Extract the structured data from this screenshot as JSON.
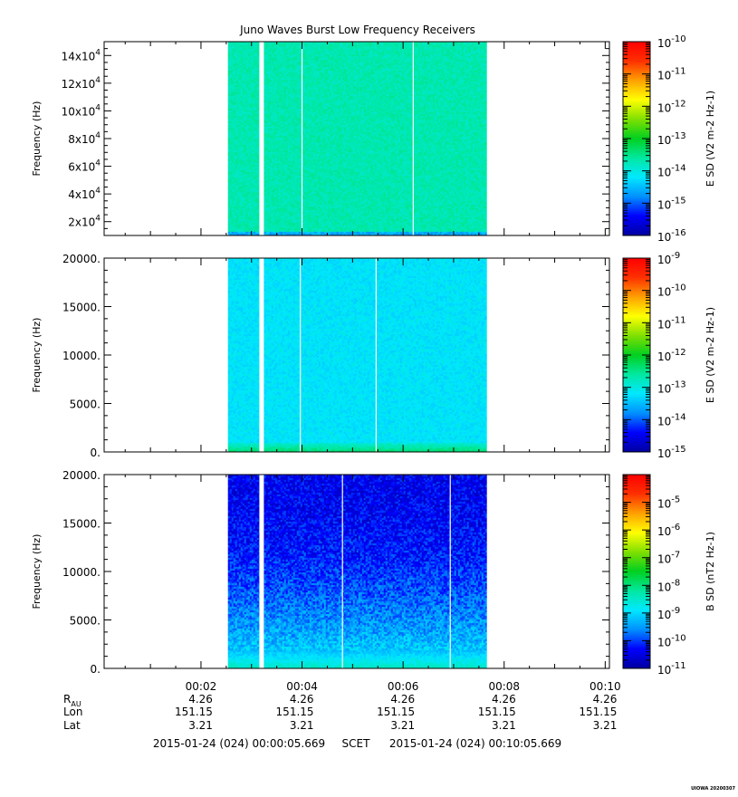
{
  "title": "Juno Waves Burst Low Frequency Receivers",
  "colors": {
    "spectrum": [
      "#0000a0",
      "#0000ff",
      "#0090ff",
      "#00e8ff",
      "#00e8a0",
      "#00d020",
      "#80e000",
      "#ffff00",
      "#ffa000",
      "#ff3000",
      "#ff0000"
    ],
    "frame": "#000000",
    "background": "#ffffff"
  },
  "footer": {
    "left": "2015-01-24 (024) 00:00:05.669",
    "mid": "SCET",
    "right": "2015-01-24 (024) 00:10:05.669"
  },
  "credit": "UIOWA 20200307",
  "ephemeris": {
    "rows": [
      {
        "label": "R",
        "sub": "AU",
        "values": [
          "4.26",
          "4.26",
          "4.26",
          "4.26",
          "4.26"
        ]
      },
      {
        "label": "Lon",
        "sub": "",
        "values": [
          "151.15",
          "151.15",
          "151.15",
          "151.15",
          "151.15"
        ]
      },
      {
        "label": "Lat",
        "sub": "",
        "values": [
          "3.21",
          "3.21",
          "3.21",
          "3.21",
          "3.21"
        ]
      }
    ]
  },
  "chart_data": [
    {
      "type": "heatmap",
      "title": "Juno Waves Burst Low Frequency Receivers",
      "ylabel": "Frequency (Hz)",
      "yscale": "linear",
      "ylim": [
        10000,
        150000
      ],
      "yticks": [
        {
          "value": 20000,
          "mant": "2x10",
          "exp": "4"
        },
        {
          "value": 40000,
          "mant": "4x10",
          "exp": "4"
        },
        {
          "value": 60000,
          "mant": "6x10",
          "exp": "4"
        },
        {
          "value": 80000,
          "mant": "8x10",
          "exp": "4"
        },
        {
          "value": 100000,
          "mant": "10x10",
          "exp": "4"
        },
        {
          "value": 120000,
          "mant": "12x10",
          "exp": "4"
        },
        {
          "value": 140000,
          "mant": "14x10",
          "exp": "4"
        }
      ],
      "colorbar": {
        "label": "E SD (V2 m-2 Hz-1)",
        "scale": "log",
        "range": [
          -16,
          -10
        ],
        "ticks": [
          {
            "exp": -16,
            "text": "-16"
          },
          {
            "exp": -15,
            "text": "-15"
          },
          {
            "exp": -14,
            "text": "-14"
          },
          {
            "exp": -13,
            "text": "-13"
          },
          {
            "exp": -12,
            "text": "-12"
          },
          {
            "exp": -11,
            "text": "-11"
          },
          {
            "exp": -10,
            "text": "-10"
          }
        ]
      },
      "data_window": [
        "00:02:32",
        "00:07:40"
      ],
      "gaps": [
        "00:03:12",
        "00:04:00",
        "00:06:12"
      ],
      "background_level": -13.7,
      "low_band_level": -14.6
    },
    {
      "type": "heatmap",
      "ylabel": "Frequency (Hz)",
      "yscale": "linear",
      "ylim": [
        0,
        20000
      ],
      "yticks": [
        {
          "value": 0,
          "label": "0."
        },
        {
          "value": 5000,
          "label": "5000."
        },
        {
          "value": 10000,
          "label": "10000."
        },
        {
          "value": 15000,
          "label": "15000."
        },
        {
          "value": 20000,
          "label": "20000."
        }
      ],
      "colorbar": {
        "label": "E SD (V2 m-2 Hz-1)",
        "scale": "log",
        "range": [
          -15,
          -9
        ],
        "ticks": [
          {
            "exp": -15,
            "text": "-15"
          },
          {
            "exp": -14,
            "text": "-14"
          },
          {
            "exp": -13,
            "text": "-13"
          },
          {
            "exp": -12,
            "text": "-12"
          },
          {
            "exp": -11,
            "text": "-11"
          },
          {
            "exp": -10,
            "text": "-10"
          },
          {
            "exp": -9,
            "text": "-9"
          }
        ]
      },
      "data_window": [
        "00:02:32",
        "00:07:40"
      ],
      "gaps": [
        "00:03:12",
        "00:03:58",
        "00:05:28"
      ],
      "background_level": -13.2,
      "low_band_level": -12.3
    },
    {
      "type": "heatmap",
      "ylabel": "Frequency (Hz)",
      "yscale": "linear",
      "ylim": [
        0,
        20000
      ],
      "yticks": [
        {
          "value": 0,
          "label": "0."
        },
        {
          "value": 5000,
          "label": "5000."
        },
        {
          "value": 10000,
          "label": "10000."
        },
        {
          "value": 15000,
          "label": "15000."
        },
        {
          "value": 20000,
          "label": "20000."
        }
      ],
      "colorbar": {
        "label": "B SD (nT2 Hz-1)",
        "scale": "log",
        "range": [
          -11,
          -4
        ],
        "ticks": [
          {
            "exp": -11,
            "text": "-11"
          },
          {
            "exp": -10,
            "text": "-10"
          },
          {
            "exp": -9,
            "text": "-9"
          },
          {
            "exp": -8,
            "text": "-8"
          },
          {
            "exp": -7,
            "text": "-7"
          },
          {
            "exp": -6,
            "text": "-6"
          },
          {
            "exp": -5,
            "text": "-5"
          }
        ]
      },
      "data_window": [
        "00:02:32",
        "00:07:40"
      ],
      "gaps": [
        "00:03:12",
        "00:04:48",
        "00:06:56"
      ],
      "background_level": -10.4,
      "low_band_level": -8.4
    }
  ],
  "x_axis": {
    "xlim": [
      "00:00:05",
      "00:10:05"
    ],
    "major_ticks": [
      {
        "time": "00:02:00",
        "label": "00:02"
      },
      {
        "time": "00:04:00",
        "label": "00:04"
      },
      {
        "time": "00:06:00",
        "label": "00:06"
      },
      {
        "time": "00:08:00",
        "label": "00:08"
      },
      {
        "time": "00:10:00",
        "label": "00:10"
      }
    ],
    "minor_step_s": 60
  }
}
